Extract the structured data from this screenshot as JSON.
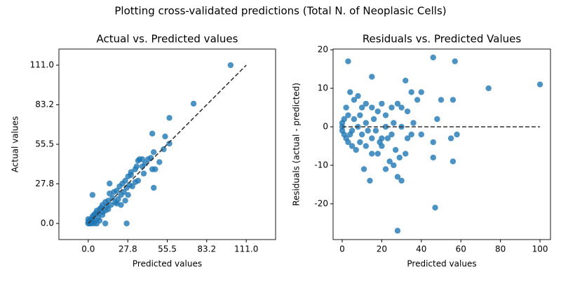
{
  "title": "Plotting cross-validated predictions (Total N. of Neoplasic Cells)",
  "chart_data": [
    {
      "type": "scatter",
      "title": "Actual vs. Predicted values",
      "xlabel": "Predicted values",
      "ylabel": "Actual values",
      "color": "#1f77b4",
      "xlim": [
        -20.6,
        131.6
      ],
      "ylim": [
        -11.3,
        122.3
      ],
      "xticks": [
        {
          "value": 0,
          "label": "0.0"
        },
        {
          "value": 27.8,
          "label": "27.8"
        },
        {
          "value": 55.5,
          "label": "55.5"
        },
        {
          "value": 83.2,
          "label": "83.2"
        },
        {
          "value": 111,
          "label": "111.0"
        }
      ],
      "yticks": [
        {
          "value": 0,
          "label": "0.0"
        },
        {
          "value": 27.8,
          "label": "27.8"
        },
        {
          "value": 55.5,
          "label": "55.5"
        },
        {
          "value": 83.2,
          "label": "83.2"
        },
        {
          "value": 111,
          "label": "111.0"
        }
      ],
      "x": [
        100,
        74,
        57,
        45,
        54,
        57,
        53,
        46,
        44,
        50,
        47,
        40,
        38,
        35,
        33,
        30,
        28,
        26,
        24,
        22,
        20,
        18,
        15,
        17,
        14,
        12,
        10,
        9,
        8,
        6,
        5,
        4,
        3,
        2,
        1,
        0,
        1,
        2,
        3,
        5,
        7,
        8,
        10,
        12,
        14,
        16,
        19,
        21,
        23,
        25,
        27,
        29,
        31,
        28,
        27,
        46,
        45,
        39,
        35,
        33,
        3,
        15,
        0,
        0,
        1,
        4,
        6,
        12,
        3,
        20,
        23,
        26,
        10,
        13,
        7,
        30,
        34,
        42,
        36,
        38
      ],
      "values": [
        111,
        84,
        74,
        63,
        61,
        56,
        52,
        50,
        46,
        43,
        38,
        42,
        45,
        44,
        38,
        36,
        33,
        30,
        28,
        26,
        23,
        22,
        21,
        18,
        16,
        15,
        13,
        11,
        10,
        9,
        7,
        6,
        5,
        3,
        1,
        0,
        2,
        0,
        1,
        2,
        4,
        2,
        6,
        9,
        10,
        13,
        15,
        17,
        20,
        22,
        25,
        27,
        26,
        20,
        0,
        25,
        38,
        35,
        30,
        29,
        20,
        28,
        3,
        1,
        0,
        0,
        0,
        0,
        3,
        14,
        13,
        16,
        8,
        12,
        7,
        34,
        40,
        45,
        45,
        40
      ],
      "reference_line": {
        "x": [
          0,
          111
        ],
        "values": [
          0,
          111
        ]
      }
    },
    {
      "type": "scatter",
      "title": "Residuals vs. Predicted Values",
      "xlabel": "Predicted values",
      "ylabel": "Residuals (actual - predicted)",
      "color": "#1f77b4",
      "xlim": [
        -4.6,
        105.3
      ],
      "ylim": [
        -29.3,
        20.2
      ],
      "xticks": [
        0,
        20,
        40,
        60,
        80,
        100
      ],
      "yticks": [
        -20,
        -10,
        0,
        10,
        20
      ],
      "x": [
        100,
        74,
        57,
        46,
        3,
        56,
        47,
        28,
        15,
        32,
        40,
        50,
        56,
        48,
        58,
        55,
        46,
        46,
        40,
        35,
        38,
        30,
        33,
        28,
        25,
        20,
        22,
        18,
        15,
        12,
        10,
        8,
        6,
        4,
        3,
        2,
        1,
        0,
        0,
        0,
        1,
        2,
        3,
        5,
        7,
        9,
        11,
        12,
        14,
        15,
        18,
        20,
        22,
        24,
        26,
        27,
        29,
        30,
        32,
        33,
        35,
        25,
        20,
        15,
        10,
        5,
        8,
        12,
        16,
        22,
        26,
        30,
        36,
        17,
        6,
        4,
        9,
        13,
        19,
        23,
        28
      ],
      "values": [
        11,
        10,
        17,
        18,
        17,
        -9,
        -21,
        -27,
        13,
        12,
        9,
        7,
        7,
        2,
        -2,
        -3,
        -4,
        -8,
        -2,
        9,
        7,
        5,
        4,
        6,
        5,
        6,
        3,
        4,
        5,
        6,
        5,
        8,
        7,
        9,
        3,
        5,
        2,
        0,
        1,
        -1,
        -2,
        -3,
        -4,
        -5,
        -6,
        -4,
        -11,
        -5,
        -14,
        -7,
        -7,
        -5,
        -11,
        -9,
        -10,
        -6,
        -8,
        -14,
        -7,
        -3,
        -2,
        -2,
        -3,
        -3,
        -2,
        -1,
        0,
        1,
        2,
        0,
        1,
        0,
        1,
        -1,
        2,
        -2,
        3,
        -1,
        -4,
        -3,
        -13
      ],
      "reference_line": {
        "x": [
          0,
          100
        ],
        "values": [
          0,
          0
        ]
      }
    }
  ]
}
